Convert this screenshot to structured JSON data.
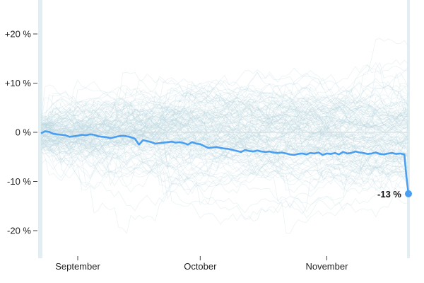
{
  "chart_data": {
    "type": "line",
    "title": "",
    "xlabel": "",
    "ylabel": "",
    "y_tick_labels": [
      "+20 %",
      "+10 %",
      "0 %",
      "-10 %",
      "-20 %"
    ],
    "y_ticks": [
      20,
      10,
      0,
      -10,
      -20
    ],
    "ylim": [
      -25,
      25
    ],
    "x_domain_days": [
      0,
      90
    ],
    "x_tick_labels": [
      {
        "label": "September",
        "day": 9
      },
      {
        "label": "October",
        "day": 39
      },
      {
        "label": "November",
        "day": 70
      }
    ],
    "grid": false,
    "background_series": "many faint light-blue lines spread between about -25 % and +25 %",
    "series": [
      {
        "color": "#4a9ff0",
        "x": [
          0,
          1,
          2,
          3,
          4,
          5,
          6,
          7,
          8,
          9,
          10,
          11,
          12,
          13,
          14,
          15,
          16,
          17,
          18,
          19,
          20,
          21,
          22,
          23,
          24,
          25,
          26,
          27,
          28,
          29,
          30,
          31,
          32,
          33,
          34,
          35,
          36,
          37,
          38,
          39,
          40,
          41,
          42,
          43,
          44,
          45,
          46,
          47,
          48,
          49,
          50,
          51,
          52,
          53,
          54,
          55,
          56,
          57,
          58,
          59,
          60,
          61,
          62,
          63,
          64,
          65,
          66,
          67,
          68,
          69,
          70,
          71,
          72,
          73,
          74,
          75,
          76,
          77,
          78,
          79,
          80,
          81,
          82,
          83,
          84,
          85,
          86,
          87,
          88,
          89,
          89.5,
          90
        ],
        "values": [
          -0.2,
          0.2,
          0.1,
          -0.3,
          -0.4,
          -0.5,
          -0.6,
          -0.9,
          -0.8,
          -0.7,
          -0.5,
          -0.6,
          -0.4,
          -0.5,
          -0.8,
          -0.9,
          -1.0,
          -1.2,
          -1.0,
          -0.8,
          -0.7,
          -0.8,
          -1.0,
          -1.3,
          -2.5,
          -1.6,
          -1.8,
          -2.0,
          -2.3,
          -2.2,
          -2.1,
          -2.0,
          -1.9,
          -2.1,
          -2.0,
          -2.2,
          -2.5,
          -2.0,
          -2.3,
          -2.4,
          -2.8,
          -3.2,
          -3.1,
          -3.0,
          -3.2,
          -3.3,
          -3.4,
          -3.6,
          -3.8,
          -4.0,
          -3.6,
          -3.8,
          -3.9,
          -3.7,
          -3.9,
          -4.0,
          -3.9,
          -4.1,
          -4.2,
          -4.1,
          -4.3,
          -4.5,
          -4.6,
          -4.4,
          -4.3,
          -4.5,
          -4.2,
          -4.3,
          -4.1,
          -4.6,
          -4.3,
          -4.4,
          -4.2,
          -4.5,
          -4.0,
          -4.3,
          -4.2,
          -3.9,
          -4.1,
          -4.2,
          -4.4,
          -4.3,
          -4.1,
          -4.4,
          -4.5,
          -4.3,
          -4.2,
          -4.4,
          -4.3,
          -4.5,
          -9.0,
          -12.5
        ],
        "end_label": "-13 %"
      }
    ]
  }
}
